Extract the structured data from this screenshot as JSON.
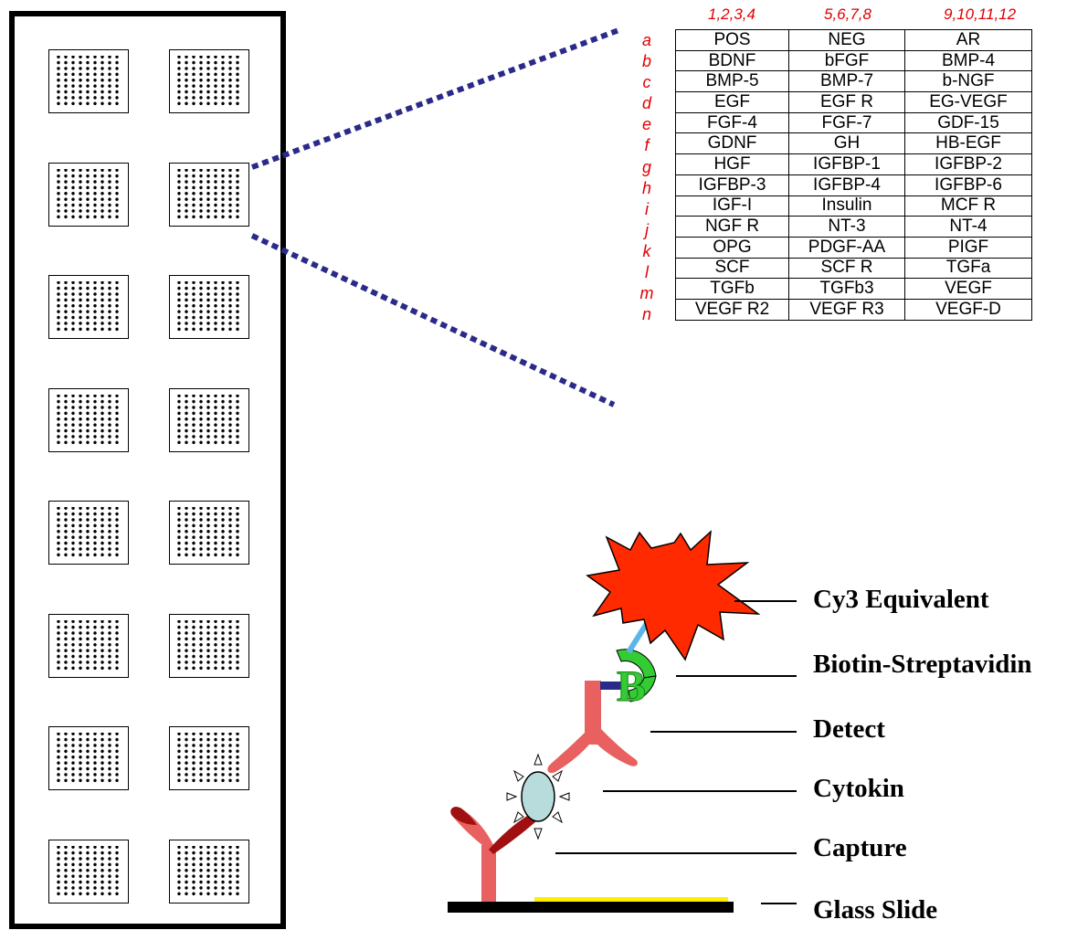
{
  "array": {
    "column_headers": [
      "1,2,3,4",
      "5,6,7,8",
      "9,10,11,12"
    ],
    "rows": [
      {
        "label": "a",
        "cells": [
          "POS",
          "NEG",
          "AR"
        ]
      },
      {
        "label": "b",
        "cells": [
          "BDNF",
          "bFGF",
          "BMP-4"
        ]
      },
      {
        "label": "c",
        "cells": [
          "BMP-5",
          "BMP-7",
          "b-NGF"
        ]
      },
      {
        "label": "d",
        "cells": [
          "EGF",
          "EGF R",
          "EG-VEGF"
        ]
      },
      {
        "label": "e",
        "cells": [
          "FGF-4",
          "FGF-7",
          "GDF-15"
        ]
      },
      {
        "label": "f",
        "cells": [
          "GDNF",
          "GH",
          "HB-EGF"
        ]
      },
      {
        "label": "g",
        "cells": [
          "HGF",
          "IGFBP-1",
          "IGFBP-2"
        ]
      },
      {
        "label": "h",
        "cells": [
          "IGFBP-3",
          "IGFBP-4",
          "IGFBP-6"
        ]
      },
      {
        "label": "i",
        "cells": [
          "IGF-I",
          "Insulin",
          "MCF R"
        ]
      },
      {
        "label": "j",
        "cells": [
          "NGF R",
          "NT-3",
          "NT-4"
        ]
      },
      {
        "label": "k",
        "cells": [
          "OPG",
          "PDGF-AA",
          "PIGF"
        ]
      },
      {
        "label": "l",
        "cells": [
          "SCF",
          "SCF R",
          "TGFa"
        ]
      },
      {
        "label": "m",
        "cells": [
          "TGFb",
          "TGFb3",
          "VEGF"
        ]
      },
      {
        "label": "n",
        "cells": [
          "VEGF R2",
          "VEGF R3",
          "VEGF-D"
        ]
      }
    ]
  },
  "sandwich_labels": {
    "cy3": "Cy3 Equivalent",
    "biotin": "Biotin-Streptavidin",
    "detect": "Detect",
    "cytokin": "Cytokin",
    "capture": "Capture",
    "glass": "Glass Slide"
  },
  "biotin_letter": "B",
  "slide": {
    "well_rows": 8,
    "well_columns": 2
  },
  "colors": {
    "header_text": "#e00000",
    "zoom_lines": "#2a2a8a",
    "antibody": "#e86060",
    "antibody_tip": "#a01010",
    "cy3_burst": "#ff2a00",
    "streptavidin": "#33cc33",
    "linker": "#5ab6e8",
    "cytokine": "#b8dcdc",
    "biotin_link": "#2a2a8a",
    "slide_coat": "#ffee00"
  }
}
